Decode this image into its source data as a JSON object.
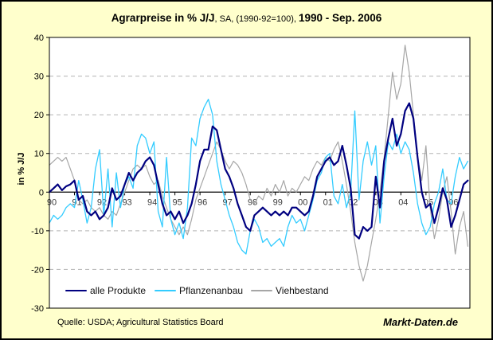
{
  "title": {
    "part1": "Agrarpreise in % J/J",
    "part2": ", SA, (1990-92=100), ",
    "part3": "1990 - Sep. 2006"
  },
  "y_axis_title": "in % J/J",
  "footer": {
    "source": "Quelle: USDA; Agricultural Statistics Board",
    "brand": "Markt-Daten.de"
  },
  "colors": {
    "background": "#FFFFCC",
    "plot_background": "#FFFFFF",
    "frame": "#000000",
    "gridline": "#B3B3B3",
    "zero_axis": "#000000",
    "tick_label": "#3D3D3D",
    "series_alle_produkte": "#000080",
    "series_pflanzenanbau": "#33CCFF",
    "series_viehbestand": "#A6A6A6"
  },
  "chart_data": {
    "type": "line",
    "title": "Agrarpreise in % J/J, SA, (1990-92=100), 1990 - Sep. 2006",
    "xlabel": "",
    "ylabel": "in % J/J",
    "ylim": [
      -30,
      40
    ],
    "grid": "horizontal-dashed",
    "legend_position": "bottom-inside",
    "x_start_year": 1990,
    "points_per_year": 6,
    "x_tick_labels": [
      "90",
      "91",
      "92",
      "93",
      "94",
      "95",
      "96",
      "97",
      "98",
      "99",
      "00",
      "01",
      "02",
      "03",
      "04",
      "05",
      "06"
    ],
    "y_tick_values": [
      40,
      30,
      20,
      10,
      0,
      -10,
      -20,
      -30
    ],
    "series": [
      {
        "name": "alle Produkte",
        "color": "#000080",
        "stroke_width": 2.2,
        "values": [
          0,
          1,
          2,
          0.5,
          1.5,
          2,
          3,
          -2,
          -1,
          -5,
          -6,
          -5,
          -7,
          -6,
          -4,
          1,
          -2,
          -1,
          2,
          5,
          3,
          5,
          6,
          8,
          9,
          7,
          2,
          -3,
          -6,
          -5,
          -7,
          -5,
          -8,
          -6,
          -3,
          2,
          8,
          11,
          11,
          17,
          16,
          11,
          6,
          4,
          1,
          -3,
          -6,
          -9,
          -10,
          -6,
          -5,
          -4,
          -5,
          -6,
          -5,
          -6,
          -5,
          -6,
          -4,
          -4,
          -5,
          -6,
          -5,
          -1,
          4,
          6,
          8,
          9,
          7,
          8,
          12,
          7,
          1,
          -11,
          -12,
          -9,
          -10,
          -9,
          4,
          -4,
          8,
          14,
          19,
          12,
          15,
          21,
          23,
          19,
          9,
          0,
          -4,
          -3,
          -8,
          -4,
          1,
          -2,
          -9,
          -6,
          -2,
          2,
          3
        ]
      },
      {
        "name": "Pflanzenanbau",
        "color": "#33CCFF",
        "stroke_width": 1.3,
        "values": [
          -8,
          -6,
          -7,
          -6,
          -4,
          -3,
          -4,
          3,
          -2,
          -8,
          -4,
          6,
          11,
          -6,
          6,
          -9,
          5,
          -4,
          2,
          4,
          1,
          12,
          15,
          14,
          10,
          13,
          -5,
          -9,
          9,
          -7,
          -11,
          -8,
          -12,
          -4,
          14,
          12,
          19,
          22,
          24,
          20,
          8,
          2,
          -2,
          -6,
          -9,
          -13,
          -15,
          -16,
          -10,
          -7,
          -9,
          -13,
          -12,
          -14,
          -13,
          -12,
          -14,
          -9,
          -6,
          -8,
          -7,
          -10,
          -6,
          -2,
          3,
          5,
          9,
          10,
          -1,
          -3,
          2,
          -4,
          0,
          21,
          -2,
          8,
          13,
          7,
          12,
          -8,
          4,
          13,
          11,
          15,
          10,
          13,
          11,
          5,
          -3,
          -8,
          -11,
          -9,
          -3,
          0,
          6,
          -2,
          -3,
          4,
          9,
          6,
          8
        ]
      },
      {
        "name": "Viehbestand",
        "color": "#A6A6A6",
        "stroke_width": 1.2,
        "values": [
          7,
          8,
          9,
          8,
          9,
          6,
          3,
          -2,
          -3,
          -2,
          -4,
          -5,
          -4,
          -6,
          -7,
          -5,
          -6,
          -3,
          0,
          3,
          6,
          7,
          6,
          7,
          4,
          2,
          3,
          -1,
          -4,
          -7,
          -9,
          -11,
          -9,
          -11,
          -7,
          -2,
          1,
          4,
          7,
          10,
          13,
          11,
          8,
          6,
          8,
          7,
          5,
          2,
          -2,
          -3,
          -1,
          -2,
          1,
          -1,
          2,
          0,
          3,
          -1,
          1,
          0,
          2,
          4,
          3,
          6,
          8,
          7,
          9,
          8,
          11,
          13,
          8,
          2,
          -5,
          -13,
          -19,
          -23,
          -19,
          -13,
          -7,
          0,
          9,
          20,
          31,
          24,
          28,
          38,
          31,
          20,
          9,
          3,
          12,
          -4,
          -12,
          -7,
          0,
          4,
          -5,
          -16,
          -9,
          -5,
          -14
        ]
      }
    ]
  }
}
